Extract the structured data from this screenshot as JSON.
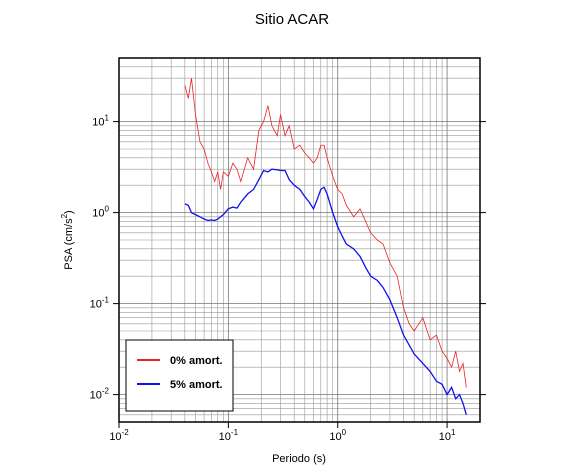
{
  "chart_data": {
    "type": "line",
    "title": "Sitio ACAR",
    "xlabel": "Periodo (s)",
    "ylabel": "PSA (cm/s^2)",
    "xscale": "log",
    "yscale": "log",
    "grid": true,
    "legend": "lower left",
    "xlim": [
      0.01,
      20
    ],
    "ylim": [
      0.005,
      50
    ],
    "xticks": [
      {
        "value": 0.01,
        "label": "10^-2"
      },
      {
        "value": 0.1,
        "label": "10^-1"
      },
      {
        "value": 1,
        "label": "10^0"
      },
      {
        "value": 10,
        "label": "10^1"
      }
    ],
    "yticks": [
      {
        "value": 0.01,
        "label": "10^-2"
      },
      {
        "value": 0.1,
        "label": "10^-1"
      },
      {
        "value": 1,
        "label": "10^0"
      },
      {
        "value": 10,
        "label": "10^1"
      }
    ],
    "xminorticks": [
      0.02,
      0.03,
      0.04,
      0.05,
      0.06,
      0.07,
      0.08,
      0.09,
      0.2,
      0.3,
      0.4,
      0.5,
      0.6,
      0.7,
      0.8,
      0.9,
      2,
      3,
      4,
      5,
      6,
      7,
      8,
      9
    ],
    "yminorticks": [
      0.006,
      0.007,
      0.008,
      0.009,
      0.02,
      0.03,
      0.04,
      0.05,
      0.06,
      0.07,
      0.08,
      0.09,
      0.2,
      0.3,
      0.4,
      0.5,
      0.6,
      0.7,
      0.8,
      0.9,
      2,
      3,
      4,
      5,
      6,
      7,
      8,
      9,
      20,
      30,
      40
    ],
    "x": [
      0.04,
      0.043,
      0.046,
      0.05,
      0.055,
      0.06,
      0.065,
      0.07,
      0.075,
      0.08,
      0.085,
      0.09,
      0.1,
      0.11,
      0.12,
      0.13,
      0.15,
      0.17,
      0.19,
      0.21,
      0.23,
      0.25,
      0.28,
      0.3,
      0.33,
      0.36,
      0.4,
      0.45,
      0.5,
      0.55,
      0.6,
      0.65,
      0.7,
      0.75,
      0.8,
      0.9,
      1.0,
      1.1,
      1.2,
      1.4,
      1.6,
      1.8,
      2.0,
      2.3,
      2.6,
      3.0,
      3.5,
      4.0,
      4.5,
      5.0,
      6.0,
      7.0,
      8.0,
      9.0,
      10,
      11,
      12,
      13,
      14,
      15
    ],
    "series": [
      {
        "name": "0% amort.",
        "color": "#ee2222",
        "values": [
          25,
          18,
          30,
          12,
          6,
          5,
          3.5,
          2.8,
          2.2,
          2.8,
          1.8,
          2.8,
          2.5,
          3.5,
          3,
          2.2,
          4,
          3,
          8,
          10,
          15,
          9,
          7,
          12,
          7,
          9,
          5,
          5.5,
          4.5,
          4,
          3.5,
          4,
          5.5,
          5.5,
          4,
          2.5,
          1.8,
          1.6,
          1.2,
          0.9,
          1.1,
          0.8,
          0.6,
          0.5,
          0.45,
          0.28,
          0.2,
          0.09,
          0.06,
          0.05,
          0.07,
          0.04,
          0.045,
          0.03,
          0.025,
          0.02,
          0.03,
          0.018,
          0.022,
          0.012
        ]
      },
      {
        "name": "5% amort.",
        "color": "#1111ee",
        "values": [
          1.25,
          1.2,
          1.0,
          0.95,
          0.9,
          0.85,
          0.82,
          0.83,
          0.82,
          0.85,
          0.9,
          0.95,
          1.1,
          1.15,
          1.12,
          1.3,
          1.6,
          1.8,
          2.3,
          2.9,
          2.8,
          3.0,
          2.95,
          2.9,
          2.9,
          2.3,
          2.0,
          1.8,
          1.5,
          1.3,
          1.1,
          1.4,
          1.8,
          1.9,
          1.6,
          1.0,
          0.7,
          0.55,
          0.45,
          0.4,
          0.33,
          0.25,
          0.2,
          0.18,
          0.15,
          0.11,
          0.07,
          0.045,
          0.035,
          0.028,
          0.022,
          0.018,
          0.014,
          0.013,
          0.01,
          0.012,
          0.009,
          0.01,
          0.008,
          0.006
        ]
      }
    ]
  }
}
